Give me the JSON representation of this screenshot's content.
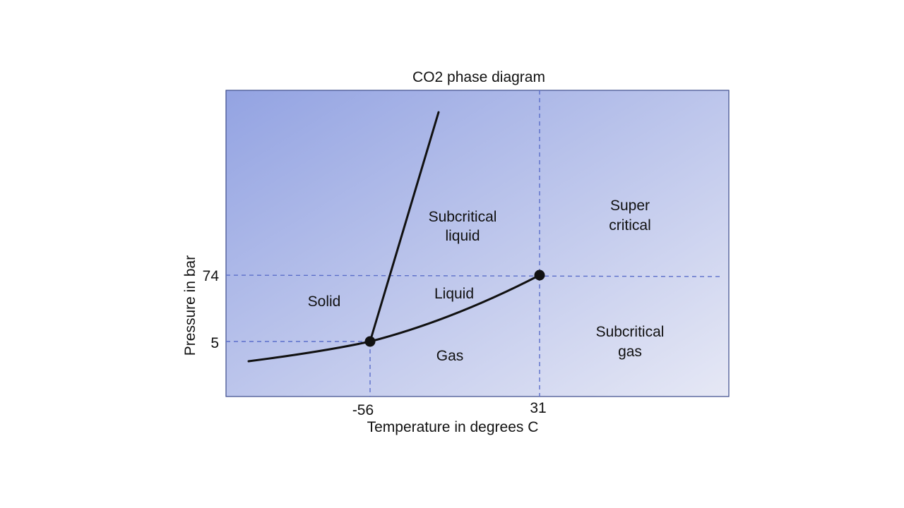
{
  "title": "CO2 phase diagram",
  "xlabel": "Temperature in degrees C",
  "ylabel": "Pressure in bar",
  "x_ticks": [
    "-56",
    "31"
  ],
  "y_ticks": [
    "74",
    "5"
  ],
  "regions": {
    "solid": [
      "Solid"
    ],
    "liquid": [
      "Liquid"
    ],
    "gas": [
      "Gas"
    ],
    "subcritical_liquid": [
      "Subcritical",
      "liquid"
    ],
    "supercritical": [
      "Super",
      "critical"
    ],
    "subcritical_gas": [
      "Subcritical",
      "gas"
    ]
  },
  "points": {
    "triple_point": {
      "temperature": -56,
      "pressure": 5
    },
    "critical_point": {
      "temperature": 31,
      "pressure": 74
    }
  },
  "colors": {
    "background_top_left": "#93a3e2",
    "background_bottom_right": "#e6e8f5",
    "dashed_lines": "#5b6ec9",
    "curves": "#111111",
    "frame": "#3b4a8a"
  }
}
